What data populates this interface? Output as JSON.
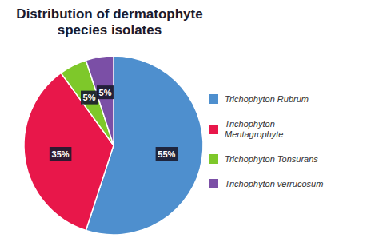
{
  "chart_data": {
    "type": "pie",
    "title": "Distribution of dermatophyte\nspecies isolates",
    "categories": [
      "Trichophyton Rubrum",
      "Trichophyton\nMentagrophyte",
      "Trichophyton Tonsurans",
      "Trichophyton verrucosum"
    ],
    "values": [
      55,
      35,
      5,
      5
    ],
    "value_labels": [
      "55%",
      "35%",
      "5%",
      "5%"
    ],
    "data_labels": true,
    "colors": [
      "#4e8fce",
      "#e8174a",
      "#7ec82a",
      "#7b4fa6"
    ],
    "legend": "right"
  }
}
